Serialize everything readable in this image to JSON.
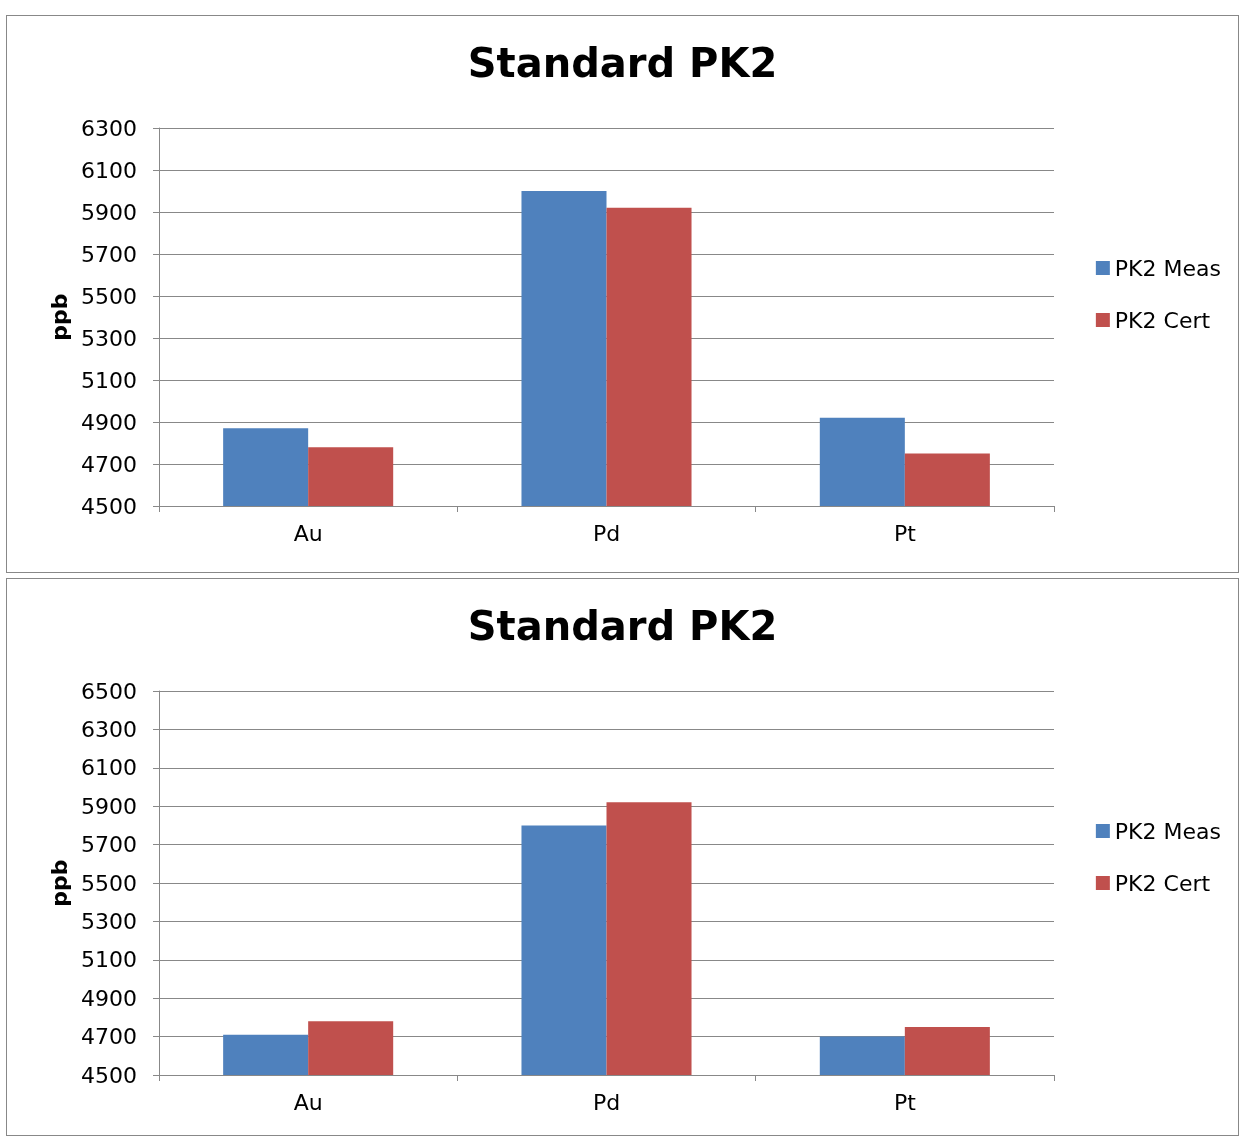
{
  "chart_data": [
    {
      "type": "bar",
      "title": "Standard PK2",
      "ylabel": "ppb",
      "categories": [
        "Au",
        "Pd",
        "Pt"
      ],
      "series": [
        {
          "name": "PK2 Meas",
          "color": "#4f81bd",
          "values": [
            4870,
            6000,
            4920
          ]
        },
        {
          "name": "PK2 Cert",
          "color": "#c0504d",
          "values": [
            4780,
            5920,
            4750
          ]
        }
      ],
      "ylim": [
        4500,
        6300
      ],
      "yticks": [
        4500,
        4700,
        4900,
        5100,
        5300,
        5500,
        5700,
        5900,
        6100,
        6300
      ],
      "grid": "y",
      "legend": "right"
    },
    {
      "type": "bar",
      "title": "Standard PK2",
      "ylabel": "ppb",
      "categories": [
        "Au",
        "Pd",
        "Pt"
      ],
      "series": [
        {
          "name": "PK2 Meas",
          "color": "#4f81bd",
          "values": [
            4710,
            5800,
            4700
          ]
        },
        {
          "name": "PK2 Cert",
          "color": "#c0504d",
          "values": [
            4780,
            5920,
            4750
          ]
        }
      ],
      "ylim": [
        4500,
        6500
      ],
      "yticks": [
        4500,
        4700,
        4900,
        5100,
        5300,
        5500,
        5700,
        5900,
        6100,
        6300,
        6500
      ],
      "grid": "y",
      "legend": "right"
    }
  ]
}
